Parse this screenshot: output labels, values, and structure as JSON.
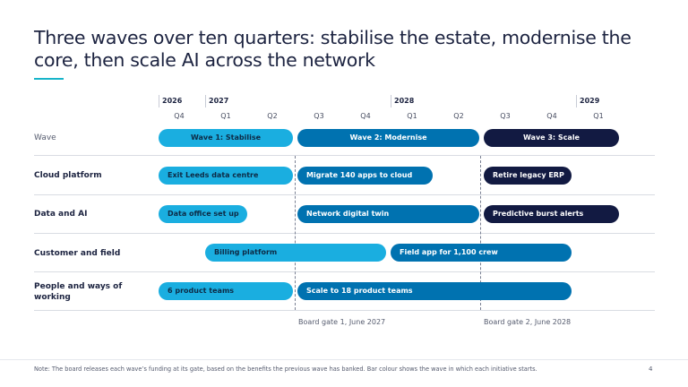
{
  "title": "Three waves over ten quarters: stabilise the estate, modernise the core, then scale AI across the network",
  "colors": {
    "wave1": "#1aaee0",
    "wave2": "#0072b0",
    "wave3": "#121a42",
    "accent": "#17b4c9"
  },
  "timeline": {
    "years": [
      "2026",
      "2027",
      "2028",
      "2029"
    ],
    "quarters": [
      "Q4",
      "Q1",
      "Q2",
      "Q3",
      "Q4",
      "Q1",
      "Q2",
      "Q3",
      "Q4",
      "Q1"
    ]
  },
  "rows": {
    "wave": {
      "label": "Wave",
      "bars": [
        {
          "label": "Wave 1: Stabilise",
          "wave": 1
        },
        {
          "label": "Wave 2: Modernise",
          "wave": 2
        },
        {
          "label": "Wave 3: Scale",
          "wave": 3
        }
      ]
    },
    "cloud": {
      "label": "Cloud platform",
      "bars": [
        {
          "label": "Exit Leeds data centre",
          "wave": 1
        },
        {
          "label": "Migrate 140 apps to cloud",
          "wave": 2
        },
        {
          "label": "Retire legacy ERP",
          "wave": 3
        }
      ]
    },
    "data": {
      "label": "Data and AI",
      "bars": [
        {
          "label": "Data office set up",
          "wave": 1
        },
        {
          "label": "Network digital twin",
          "wave": 2
        },
        {
          "label": "Predictive burst alerts",
          "wave": 3
        }
      ]
    },
    "customer": {
      "label": "Customer and field",
      "bars": [
        {
          "label": "Billing platform",
          "wave": 1
        },
        {
          "label": "Field app for 1,100 crew",
          "wave": 2
        }
      ]
    },
    "people": {
      "label": "People and ways of working",
      "bars": [
        {
          "label": "6 product teams",
          "wave": 1
        },
        {
          "label": "Scale to 18 product teams",
          "wave": 2
        }
      ]
    }
  },
  "gates": [
    "Board gate 1, June 2027",
    "Board gate 2, June 2028"
  ],
  "note": "Note: The board releases each wave’s funding at its gate, based on the benefits the previous wave has banked. Bar colour shows the wave in which each initiative starts.",
  "page_number": "4"
}
